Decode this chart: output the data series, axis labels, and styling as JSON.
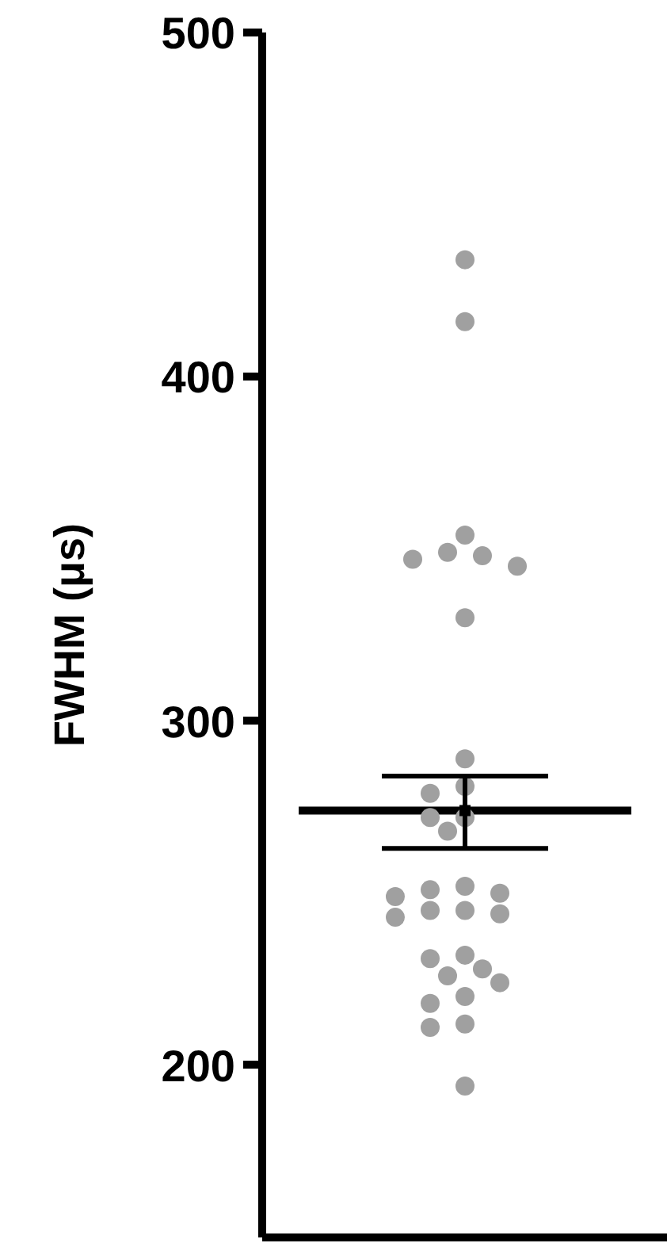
{
  "chart_data": {
    "type": "scatter",
    "ylabel": "FWHM (μs)",
    "categories": [
      null
    ],
    "ylim": [
      150,
      500
    ],
    "yticks": [
      200,
      300,
      400,
      500
    ],
    "grid": false,
    "ref_lines": [
      {
        "axis": "y",
        "value": 274,
        "color": "#000000"
      }
    ],
    "tick_labels": "y",
    "series": [
      {
        "type": "scatter",
        "color": "#a0a0a0",
        "marker": "circle",
        "x": [
          null,
          null,
          null,
          null,
          null,
          null,
          null,
          null,
          null,
          null,
          null,
          null,
          null,
          null,
          null,
          null,
          null,
          null,
          null,
          null,
          null,
          null,
          null,
          null,
          null,
          null,
          null,
          null,
          null,
          null,
          null,
          null
        ],
        "values": [
          434,
          416,
          354,
          348,
          345,
          347,
          349,
          330,
          289,
          279,
          281,
          272,
          272,
          268,
          251,
          252,
          249,
          250,
          245,
          243,
          244,
          245,
          232,
          231,
          228,
          224,
          226,
          220,
          218,
          211,
          212,
          194
        ]
      },
      {
        "type": "scatter",
        "color": "#000000",
        "values": [
          274
        ],
        "errors": [
          [
            263,
            284
          ]
        ]
      }
    ]
  }
}
